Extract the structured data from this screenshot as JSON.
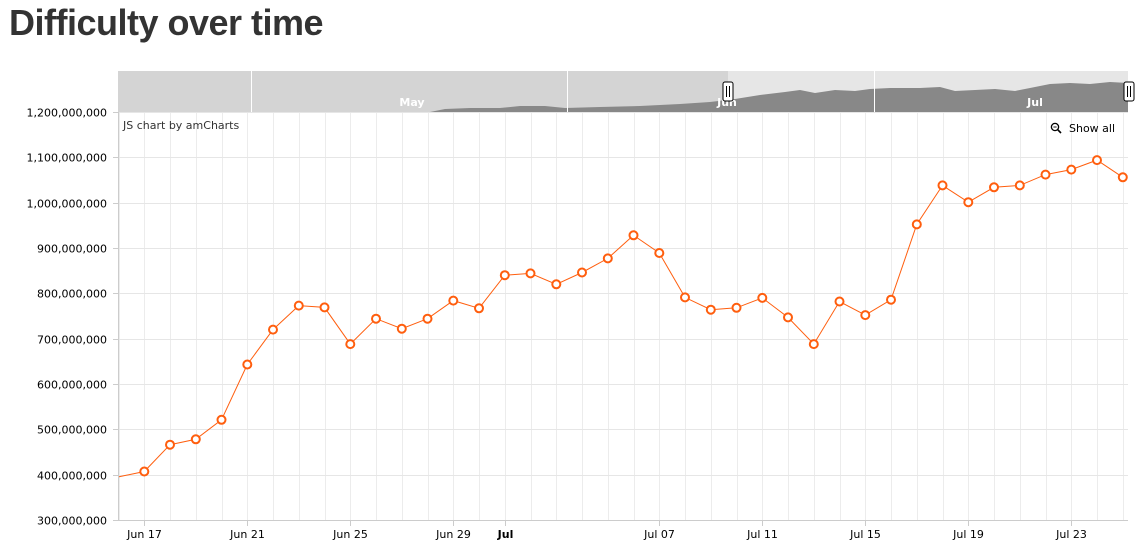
{
  "page": {
    "title": "Difficulty over time"
  },
  "chart": {
    "credit": "JS chart by amCharts",
    "show_all_label": "Show all",
    "scrollbar_labels": [
      "May",
      "Jun",
      "Jul"
    ],
    "colors": {
      "line": "#FF5E0E",
      "grid": "#e6e6e6",
      "scroll_bg": "#d4d4d4",
      "scroll_selected": "#e6e6e6",
      "scroll_graph": "#888888"
    }
  },
  "chart_data": {
    "type": "line",
    "title": "Difficulty over time",
    "xlabel": "",
    "ylabel": "",
    "ylim": [
      300000000,
      1200000000
    ],
    "y_ticks": [
      300000000,
      400000000,
      500000000,
      600000000,
      700000000,
      800000000,
      900000000,
      1000000000,
      1100000000,
      1200000000
    ],
    "y_tick_labels": [
      "300,000,000",
      "400,000,000",
      "500,000,000",
      "600,000,000",
      "700,000,000",
      "800,000,000",
      "900,000,000",
      "1,000,000,000",
      "1,100,000,000",
      "1,200,000,000"
    ],
    "x_tick_labels": [
      "Jun 17",
      "Jun 21",
      "Jun 25",
      "Jun 29",
      "Jul",
      "Jul 07",
      "Jul 11",
      "Jul 15",
      "Jul 19",
      "Jul 23"
    ],
    "grid": true,
    "series": [
      {
        "x": [
          "Jun 16",
          "Jun 17",
          "Jun 18",
          "Jun 19",
          "Jun 20",
          "Jun 21",
          "Jun 22",
          "Jun 23",
          "Jun 24",
          "Jun 25",
          "Jun 26",
          "Jun 27",
          "Jun 28",
          "Jun 29",
          "Jun 30",
          "Jul 01",
          "Jul 02",
          "Jul 03",
          "Jul 04",
          "Jul 05",
          "Jul 06",
          "Jul 07",
          "Jul 08",
          "Jul 09",
          "Jul 10",
          "Jul 11",
          "Jul 12",
          "Jul 13",
          "Jul 14",
          "Jul 15",
          "Jul 16",
          "Jul 17",
          "Jul 18",
          "Jul 19",
          "Jul 20",
          "Jul 21",
          "Jul 22",
          "Jul 23",
          "Jul 24",
          "Jul 25"
        ],
        "values": [
          395000000,
          407000000,
          466000000,
          478000000,
          521000000,
          643000000,
          720000000,
          773000000,
          769000000,
          688000000,
          744000000,
          722000000,
          744000000,
          784000000,
          767000000,
          840000000,
          844000000,
          820000000,
          846000000,
          877000000,
          928000000,
          889000000,
          791000000,
          764000000,
          768000000,
          790000000,
          747000000,
          688000000,
          782000000,
          752000000,
          786000000,
          952000000,
          1038000000,
          1001000000,
          1034000000,
          1038000000,
          1062000000,
          1073000000,
          1094000000,
          1056000000
        ],
        "markers": [
          false,
          true,
          true,
          true,
          true,
          true,
          true,
          true,
          true,
          true,
          true,
          true,
          true,
          true,
          true,
          true,
          true,
          true,
          true,
          true,
          true,
          true,
          true,
          true,
          true,
          true,
          true,
          true,
          true,
          true,
          true,
          true,
          true,
          true,
          true,
          true,
          true,
          true,
          true,
          true
        ]
      }
    ]
  }
}
